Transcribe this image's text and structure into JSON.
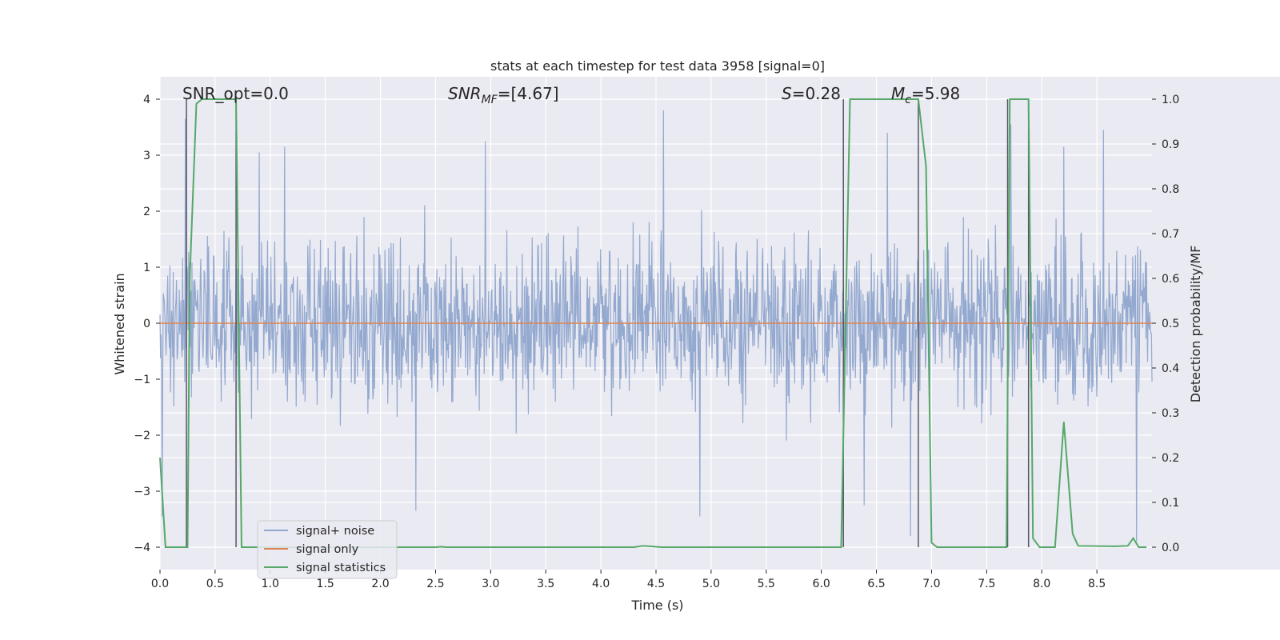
{
  "chart_data": {
    "type": "line",
    "title": "stats at each timestep for test data 3958 [signal=0]",
    "xlabel": "Time (s)",
    "ylabel_left": "Whitened strain",
    "ylabel_right": "Detection probability/MF",
    "xlim": [
      0.0,
      9.0
    ],
    "ylim_left": [
      -4.4,
      4.4
    ],
    "ylim_right": [
      -0.05,
      1.05
    ],
    "x_ticks": [
      "0.0",
      "0.5",
      "1.0",
      "1.5",
      "2.0",
      "2.5",
      "3.0",
      "3.5",
      "4.0",
      "4.5",
      "5.0",
      "5.5",
      "6.0",
      "6.5",
      "7.0",
      "7.5",
      "8.0",
      "8.5"
    ],
    "y_left_ticks": [
      "4",
      "3",
      "2",
      "1",
      "0",
      "−1",
      "−2",
      "−3",
      "−4"
    ],
    "y_right_ticks": [
      "1.0",
      "0.9",
      "0.8",
      "0.7",
      "0.6",
      "0.5",
      "0.4",
      "0.3",
      "0.2",
      "0.1",
      "0.0"
    ],
    "grid": true,
    "colors": {
      "background": "#eaeaf2",
      "grid": "#ffffff",
      "noise": "#8fa5cc",
      "signal": "#dd8452",
      "stats": "#55a868",
      "vline": "#555566"
    },
    "annotations": {
      "snr_opt": "SNR_opt=0.0",
      "snr_mf_sym": "SNR",
      "snr_mf_sub": "MF",
      "snr_mf_val": "=[4.67]",
      "s_sym": "S",
      "s_val": "=0.28",
      "mc_sym": "M",
      "mc_sub": "c",
      "mc_val": "=5.98"
    },
    "legend": {
      "position": "lower-left",
      "entries": [
        "signal+ noise",
        "signal only",
        "signal statistics"
      ]
    },
    "series": [
      {
        "name": "signal+ noise",
        "style": "noise",
        "sample_count": 1800,
        "seed": 3958,
        "typical_range": [
          -2.5,
          2.5
        ],
        "peaks": [
          {
            "x": 0.23,
            "y": 3.65
          },
          {
            "x": 0.9,
            "y": 3.05
          },
          {
            "x": 1.13,
            "y": 3.15
          },
          {
            "x": 2.95,
            "y": 3.25
          },
          {
            "x": 4.57,
            "y": 3.8
          },
          {
            "x": 6.6,
            "y": 3.4
          },
          {
            "x": 7.72,
            "y": 3.55
          },
          {
            "x": 8.2,
            "y": 3.15
          },
          {
            "x": 8.56,
            "y": 3.45
          },
          {
            "x": 2.32,
            "y": -3.35
          },
          {
            "x": 4.9,
            "y": -3.45
          },
          {
            "x": 6.39,
            "y": -3.25
          },
          {
            "x": 6.81,
            "y": -3.8
          },
          {
            "x": 8.86,
            "y": -3.9
          },
          {
            "x": 0.02,
            "y": -3.45
          }
        ]
      },
      {
        "name": "signal only",
        "style": "signal",
        "x": [
          0.0,
          9.0
        ],
        "y": [
          0.0,
          0.0
        ]
      },
      {
        "name": "signal statistics",
        "style": "stats",
        "axis": "right",
        "x": [
          0.0,
          0.05,
          0.25,
          0.27,
          0.33,
          0.38,
          0.48,
          0.69,
          0.74,
          0.8,
          1.5,
          2.5,
          2.55,
          2.6,
          4.3,
          4.38,
          4.45,
          4.55,
          6.1,
          6.18,
          6.26,
          6.4,
          6.6,
          6.8,
          6.88,
          6.95,
          7.0,
          7.05,
          7.4,
          7.68,
          7.71,
          7.74,
          7.88,
          7.92,
          7.98,
          8.12,
          8.2,
          8.28,
          8.33,
          8.66,
          8.78,
          8.83,
          8.88,
          8.95
        ],
        "y": [
          0.2,
          0.0,
          0.0,
          0.6,
          0.99,
          1.0,
          1.0,
          1.0,
          0.0,
          0.0,
          0.0,
          0.0,
          0.001,
          0.0,
          0.0,
          0.003,
          0.002,
          0.0,
          0.0,
          0.0,
          1.0,
          1.0,
          1.0,
          1.0,
          1.0,
          0.85,
          0.01,
          0.0,
          0.0,
          0.0,
          1.0,
          1.0,
          1.0,
          0.02,
          0.0,
          0.0,
          0.28,
          0.03,
          0.003,
          0.002,
          0.003,
          0.02,
          0.0,
          0.0
        ]
      }
    ],
    "vertical_lines_x": [
      0.24,
      0.69,
      6.2,
      6.88,
      7.69,
      7.88
    ]
  }
}
